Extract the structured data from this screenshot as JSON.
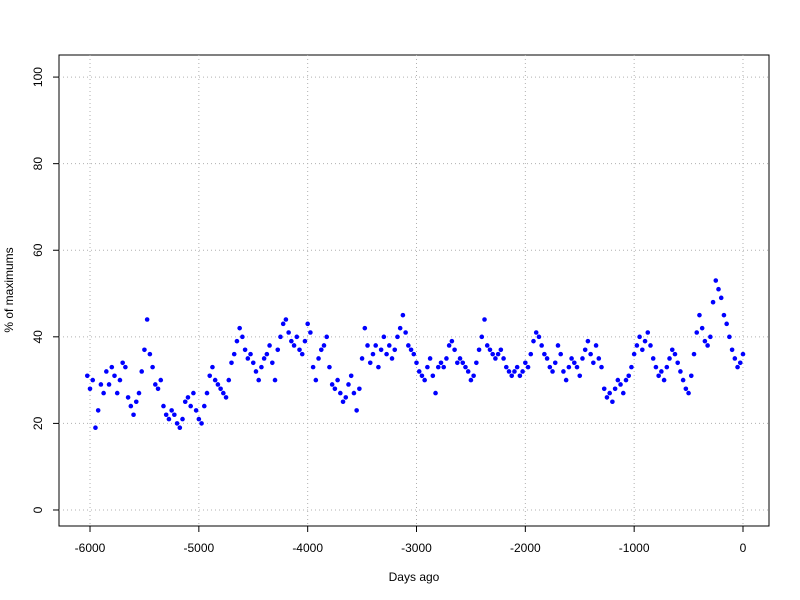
{
  "chart_data": {
    "type": "scatter",
    "xlabel": "Days ago",
    "ylabel": "% of maximums",
    "color": "#0000ff",
    "grid": true,
    "xlim": [
      -6285,
      239
    ],
    "ylim": [
      -3.7,
      105.1
    ],
    "xticks": [
      -6000,
      -5000,
      -4000,
      -3000,
      -2000,
      -1000,
      0
    ],
    "yticks": [
      0,
      20,
      40,
      60,
      80,
      100
    ],
    "x": [
      -6025,
      -6000,
      -5975,
      -5950,
      -5925,
      -5900,
      -5875,
      -5850,
      -5825,
      -5800,
      -5775,
      -5750,
      -5725,
      -5700,
      -5675,
      -5650,
      -5625,
      -5600,
      -5575,
      -5550,
      -5525,
      -5500,
      -5475,
      -5450,
      -5425,
      -5400,
      -5375,
      -5350,
      -5325,
      -5300,
      -5275,
      -5250,
      -5225,
      -5200,
      -5175,
      -5150,
      -5125,
      -5100,
      -5075,
      -5050,
      -5025,
      -5000,
      -4975,
      -4950,
      -4925,
      -4900,
      -4875,
      -4850,
      -4825,
      -4800,
      -4775,
      -4750,
      -4725,
      -4700,
      -4675,
      -4650,
      -4625,
      -4600,
      -4575,
      -4550,
      -4525,
      -4500,
      -4475,
      -4450,
      -4425,
      -4400,
      -4375,
      -4350,
      -4325,
      -4300,
      -4275,
      -4250,
      -4225,
      -4200,
      -4175,
      -4150,
      -4125,
      -4100,
      -4075,
      -4050,
      -4025,
      -4000,
      -3975,
      -3950,
      -3925,
      -3900,
      -3875,
      -3850,
      -3825,
      -3800,
      -3775,
      -3750,
      -3725,
      -3700,
      -3675,
      -3650,
      -3625,
      -3600,
      -3575,
      -3550,
      -3525,
      -3500,
      -3475,
      -3450,
      -3425,
      -3400,
      -3375,
      -3350,
      -3325,
      -3300,
      -3275,
      -3250,
      -3225,
      -3200,
      -3175,
      -3150,
      -3125,
      -3100,
      -3075,
      -3050,
      -3025,
      -3000,
      -2975,
      -2950,
      -2925,
      -2900,
      -2875,
      -2850,
      -2825,
      -2800,
      -2775,
      -2750,
      -2725,
      -2700,
      -2675,
      -2650,
      -2625,
      -2600,
      -2575,
      -2550,
      -2525,
      -2500,
      -2475,
      -2450,
      -2425,
      -2400,
      -2375,
      -2350,
      -2325,
      -2300,
      -2275,
      -2250,
      -2225,
      -2200,
      -2175,
      -2150,
      -2125,
      -2100,
      -2075,
      -2050,
      -2025,
      -2000,
      -1975,
      -1950,
      -1925,
      -1900,
      -1875,
      -1850,
      -1825,
      -1800,
      -1775,
      -1750,
      -1725,
      -1700,
      -1675,
      -1650,
      -1625,
      -1600,
      -1575,
      -1550,
      -1525,
      -1500,
      -1475,
      -1450,
      -1425,
      -1400,
      -1375,
      -1350,
      -1325,
      -1300,
      -1275,
      -1250,
      -1225,
      -1200,
      -1175,
      -1150,
      -1125,
      -1100,
      -1075,
      -1050,
      -1025,
      -1000,
      -975,
      -950,
      -925,
      -900,
      -875,
      -850,
      -825,
      -800,
      -775,
      -750,
      -725,
      -700,
      -675,
      -650,
      -625,
      -600,
      -575,
      -550,
      -525,
      -500,
      -475,
      -450,
      -425,
      -400,
      -375,
      -350,
      -325,
      -300,
      -275,
      -250,
      -225,
      -200,
      -175,
      -150,
      -125,
      -100,
      -75,
      -50,
      -25,
      0
    ],
    "values": [
      31,
      28,
      30,
      19,
      23,
      29,
      27,
      32,
      29,
      33,
      31,
      27,
      30,
      34,
      33,
      26,
      24,
      22,
      25,
      27,
      32,
      37,
      44,
      36,
      33,
      29,
      28,
      30,
      24,
      22,
      21,
      23,
      22,
      20,
      19,
      21,
      25,
      26,
      24,
      27,
      23,
      21,
      20,
      24,
      27,
      31,
      33,
      30,
      29,
      28,
      27,
      26,
      30,
      34,
      36,
      39,
      42,
      40,
      37,
      35,
      36,
      34,
      32,
      30,
      33,
      35,
      36,
      38,
      34,
      30,
      37,
      40,
      43,
      44,
      41,
      39,
      38,
      40,
      37,
      36,
      39,
      43,
      41,
      33,
      30,
      35,
      37,
      38,
      40,
      33,
      29,
      28,
      30,
      27,
      25,
      26,
      29,
      31,
      27,
      23,
      28,
      35,
      42,
      38,
      34,
      36,
      38,
      33,
      37,
      40,
      36,
      38,
      35,
      37,
      40,
      42,
      45,
      41,
      38,
      37,
      36,
      34,
      32,
      31,
      30,
      33,
      35,
      31,
      27,
      33,
      34,
      33,
      35,
      38,
      39,
      37,
      34,
      35,
      34,
      33,
      32,
      30,
      31,
      34,
      37,
      40,
      44,
      38,
      37,
      36,
      35,
      36,
      37,
      35,
      33,
      32,
      31,
      32,
      33,
      31,
      32,
      34,
      33,
      36,
      39,
      41,
      40,
      38,
      36,
      35,
      33,
      32,
      34,
      38,
      36,
      32,
      30,
      33,
      35,
      34,
      33,
      31,
      35,
      37,
      39,
      36,
      34,
      38,
      35,
      33,
      28,
      26,
      27,
      25,
      28,
      30,
      29,
      27,
      30,
      31,
      33,
      36,
      38,
      40,
      37,
      39,
      41,
      38,
      35,
      33,
      31,
      32,
      30,
      33,
      35,
      37,
      36,
      34,
      32,
      30,
      28,
      27,
      31,
      36,
      41,
      45,
      42,
      39,
      38,
      40,
      48,
      53,
      51,
      49,
      45,
      43,
      40,
      37,
      35,
      33,
      34,
      36
    ]
  }
}
